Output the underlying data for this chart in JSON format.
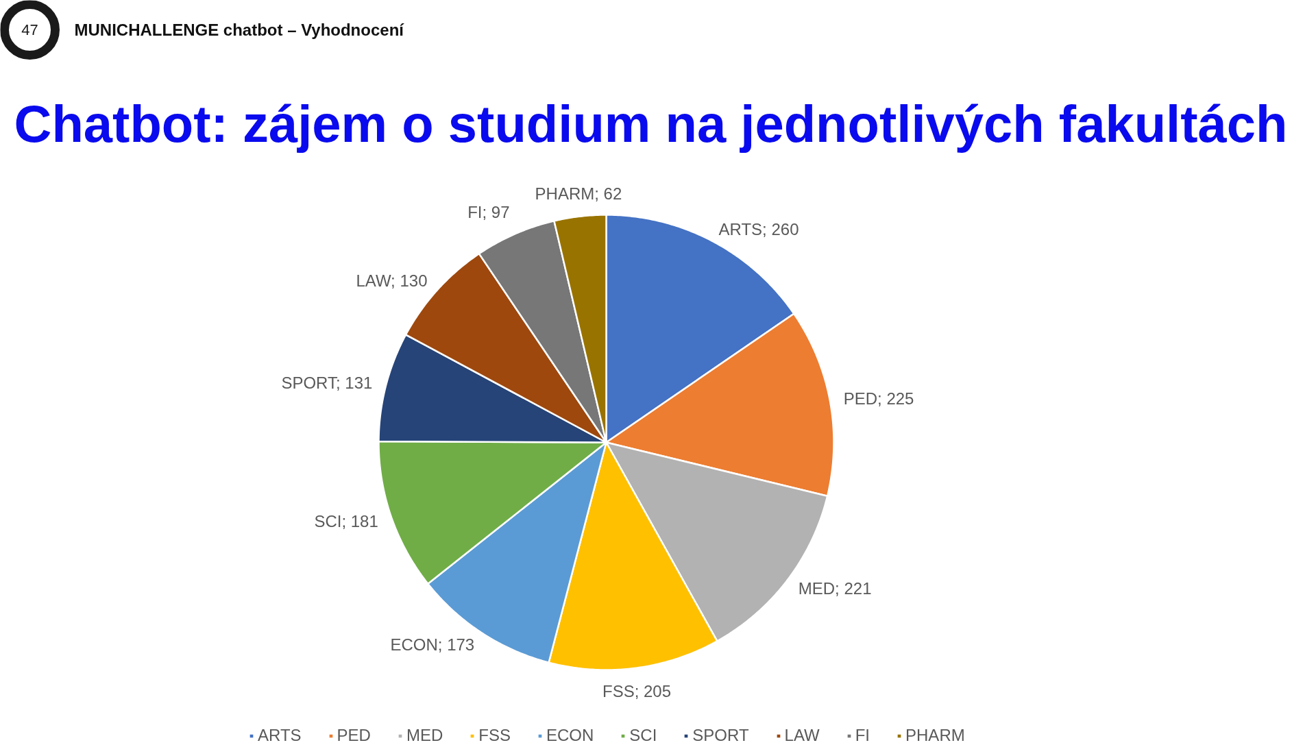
{
  "chart_data": {
    "type": "pie",
    "title": "Chatbot: zájem o studium na jednotlivých fakultách",
    "subtitle": "MUNICHALLENGE chatbot – Vyhodnocení",
    "annotations": [
      "47"
    ],
    "categories": [
      "ARTS",
      "PED",
      "MED",
      "FSS",
      "ECON",
      "SCI",
      "SPORT",
      "LAW",
      "FI",
      "PHARM"
    ],
    "values": [
      260,
      225,
      221,
      205,
      173,
      181,
      131,
      130,
      97,
      62
    ],
    "value_labels": [
      "ARTS; 260",
      "PED; 225",
      "MED; 221",
      "FSS; 205",
      "ECON; 173",
      "SCI; 181",
      "SPORT; 131",
      "LAW; 130",
      "FI; 97",
      "PHARM; 62"
    ],
    "colors": [
      "#4472c4",
      "#ed7d31",
      "#b2b2b2",
      "#ffc000",
      "#5b9bd5",
      "#70ad47",
      "#264478",
      "#9e480e",
      "#777777",
      "#997300"
    ],
    "legend": "bottom"
  }
}
